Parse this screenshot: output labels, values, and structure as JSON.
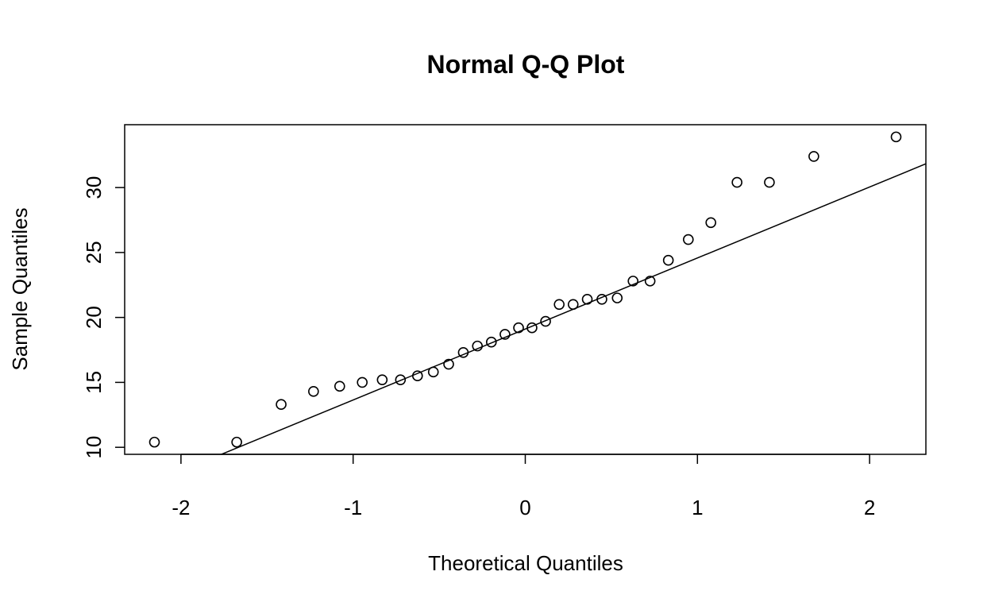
{
  "chart_data": {
    "type": "scatter",
    "title": "Normal Q-Q Plot",
    "x_label": "Theoretical Quantiles",
    "y_label": "Sample Quantiles",
    "x": [
      -2.154,
      -1.676,
      -1.418,
      -1.23,
      -1.078,
      -0.947,
      -0.831,
      -0.725,
      -0.626,
      -0.534,
      -0.445,
      -0.36,
      -0.278,
      -0.197,
      -0.118,
      -0.039,
      0.039,
      0.118,
      0.197,
      0.278,
      0.36,
      0.445,
      0.534,
      0.626,
      0.725,
      0.831,
      0.947,
      1.078,
      1.23,
      1.418,
      1.676,
      2.154
    ],
    "y": [
      10.4,
      10.4,
      13.3,
      14.3,
      14.7,
      15.0,
      15.2,
      15.2,
      15.5,
      15.8,
      16.4,
      17.3,
      17.8,
      18.1,
      18.7,
      19.2,
      19.2,
      19.7,
      21.0,
      21.0,
      21.4,
      21.4,
      21.5,
      22.8,
      22.8,
      24.4,
      26.0,
      27.3,
      30.4,
      30.4,
      32.4,
      33.9
    ],
    "color": "#000000",
    "reference_line": {
      "slope": 5.467,
      "intercept": 19.11
    },
    "xlim": [
      -2.327,
      2.327
    ],
    "xticks": [
      -2,
      -1,
      0,
      1,
      2
    ],
    "ylim": [
      9.46,
      34.84
    ],
    "yticks": [
      10,
      15,
      20,
      25,
      30
    ]
  }
}
